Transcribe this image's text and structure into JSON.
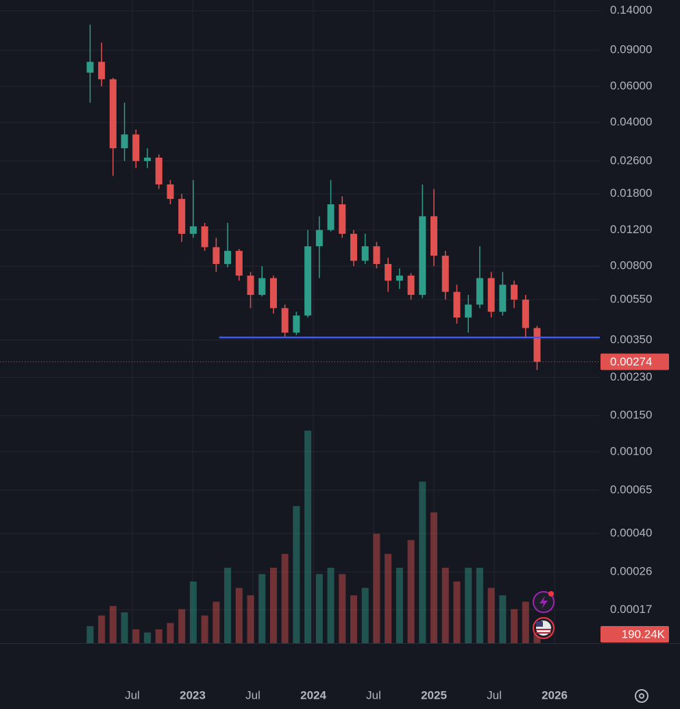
{
  "chart_data": {
    "type": "candlestick",
    "log_y": true,
    "grid": true,
    "up_color": "#2e9e8b",
    "down_color": "#e0514f",
    "x": [
      2022.15,
      2022.245,
      2022.34,
      2022.435,
      2022.53,
      2022.625,
      2022.72,
      2022.815,
      2022.91,
      2023.005,
      2023.1,
      2023.195,
      2023.29,
      2023.385,
      2023.48,
      2023.575,
      2023.67,
      2023.765,
      2023.86,
      2023.955,
      2024.05,
      2024.145,
      2024.24,
      2024.335,
      2024.43,
      2024.525,
      2024.62,
      2024.715,
      2024.81,
      2024.905,
      2025.0,
      2025.095,
      2025.19,
      2025.285,
      2025.38,
      2025.475,
      2025.57,
      2025.665,
      2025.76,
      2025.855
    ],
    "open": [
      0.07,
      0.079,
      0.065,
      0.03,
      0.035,
      0.026,
      0.027,
      0.02,
      0.017,
      0.0115,
      0.0125,
      0.0099,
      0.0082,
      0.0095,
      0.0072,
      0.0058,
      0.007,
      0.005,
      0.0038,
      0.0046,
      0.01,
      0.012,
      0.016,
      0.0115,
      0.0085,
      0.01,
      0.0082,
      0.0068,
      0.0072,
      0.0058,
      0.014,
      0.009,
      0.006,
      0.0045,
      0.0052,
      0.007,
      0.0048,
      0.0065,
      0.0055,
      0.004
    ],
    "high": [
      0.12,
      0.098,
      0.066,
      0.05,
      0.037,
      0.03,
      0.028,
      0.021,
      0.018,
      0.021,
      0.013,
      0.011,
      0.013,
      0.0097,
      0.0075,
      0.008,
      0.0072,
      0.0052,
      0.0048,
      0.012,
      0.014,
      0.021,
      0.0175,
      0.012,
      0.0115,
      0.0105,
      0.0088,
      0.0078,
      0.0074,
      0.02,
      0.019,
      0.0095,
      0.0065,
      0.0058,
      0.01,
      0.0075,
      0.0075,
      0.0068,
      0.0058,
      0.0041
    ],
    "low": [
      0.05,
      0.06,
      0.022,
      0.026,
      0.024,
      0.024,
      0.019,
      0.016,
      0.0105,
      0.011,
      0.0095,
      0.0075,
      0.0079,
      0.0068,
      0.005,
      0.0057,
      0.0047,
      0.0036,
      0.0037,
      0.0045,
      0.007,
      0.0118,
      0.011,
      0.008,
      0.0082,
      0.0078,
      0.006,
      0.0062,
      0.0055,
      0.0056,
      0.008,
      0.0055,
      0.0042,
      0.0038,
      0.005,
      0.0045,
      0.0046,
      0.005,
      0.0036,
      0.0025
    ],
    "close": [
      0.079,
      0.065,
      0.03,
      0.035,
      0.026,
      0.027,
      0.02,
      0.017,
      0.0115,
      0.0125,
      0.0099,
      0.0082,
      0.0095,
      0.0072,
      0.0058,
      0.007,
      0.005,
      0.0038,
      0.0046,
      0.01,
      0.012,
      0.016,
      0.0115,
      0.0085,
      0.01,
      0.0082,
      0.0068,
      0.0072,
      0.0058,
      0.014,
      0.009,
      0.006,
      0.0045,
      0.0052,
      0.007,
      0.0048,
      0.0065,
      0.0055,
      0.004,
      0.00274
    ],
    "volume": {
      "values": [
        160000,
        260000,
        350000,
        290000,
        130000,
        100000,
        130000,
        190000,
        320000,
        580000,
        260000,
        390000,
        710000,
        520000,
        450000,
        650000,
        710000,
        840000,
        1290000,
        2000000,
        650000,
        710000,
        650000,
        450000,
        520000,
        1030000,
        840000,
        710000,
        970000,
        1520000,
        1230000,
        710000,
        580000,
        710000,
        710000,
        520000,
        450000,
        320000,
        390000,
        190240
      ],
      "value_labels": [
        null,
        null,
        null,
        null,
        null,
        null,
        null,
        null,
        null,
        null,
        null,
        null,
        null,
        null,
        null,
        null,
        null,
        null,
        null,
        null,
        null,
        null,
        null,
        null,
        null,
        null,
        null,
        null,
        null,
        null,
        null,
        null,
        null,
        null,
        null,
        null,
        null,
        null,
        null,
        "190.24K"
      ],
      "lim": [
        0,
        2000000
      ]
    },
    "hline": {
      "value": 0.0036,
      "x_start": 2023.22,
      "color": "#3d5afe"
    },
    "xlim": [
      2021.403,
      2026.375
    ],
    "ylim": [
      0.000117,
      0.158
    ],
    "xticks": [
      {
        "value": 2022.5,
        "label": "Jul"
      },
      2023,
      {
        "value": 2023.5,
        "label": "Jul"
      },
      2024,
      {
        "value": 2024.5,
        "label": "Jul"
      },
      2025,
      {
        "value": 2025.5,
        "label": "Jul"
      },
      2026
    ],
    "yticks": [
      {
        "value": 0.14,
        "label": "0.14000"
      },
      {
        "value": 0.09,
        "label": "0.09000"
      },
      {
        "value": 0.06,
        "label": "0.06000"
      },
      {
        "value": 0.04,
        "label": "0.04000"
      },
      {
        "value": 0.026,
        "label": "0.02600"
      },
      {
        "value": 0.018,
        "label": "0.01800"
      },
      {
        "value": 0.012,
        "label": "0.01200"
      },
      {
        "value": 0.008,
        "label": "0.00800"
      },
      {
        "value": 0.0055,
        "label": "0.00550"
      },
      {
        "value": 0.0035,
        "label": "0.00350"
      },
      {
        "value": 0.0023,
        "label": "0.00230"
      },
      {
        "value": 0.0015,
        "label": "0.00150"
      },
      {
        "value": 0.001,
        "label": "0.00100"
      },
      {
        "value": 0.00065,
        "label": "0.00065"
      },
      {
        "value": 0.0004,
        "label": "0.00040"
      },
      {
        "value": 0.00026,
        "label": "0.00026"
      },
      {
        "value": 0.00017,
        "label": "0.00017"
      }
    ]
  }
}
